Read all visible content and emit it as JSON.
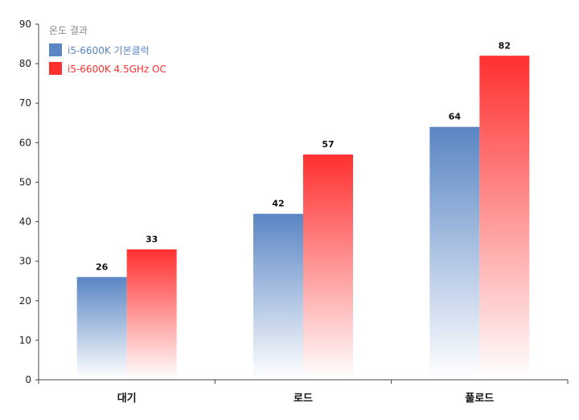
{
  "chart_data": {
    "type": "bar",
    "categories": [
      "대기",
      "로드",
      "풀로드"
    ],
    "series": [
      {
        "name": "i5-6600K 기본클럭",
        "values": [
          26,
          42,
          64
        ],
        "color": "#5a86c4"
      },
      {
        "name": "i5-6600K 4.5GHz OC",
        "values": [
          33,
          57,
          82
        ],
        "color": "#ff2f2f"
      }
    ],
    "legend": {
      "title": "온도 결과",
      "position": "top-left"
    },
    "yticks": [
      0,
      10,
      20,
      30,
      40,
      50,
      60,
      70,
      80,
      90
    ],
    "ylim": [
      0,
      90
    ],
    "grid": false,
    "data_labels": true
  }
}
